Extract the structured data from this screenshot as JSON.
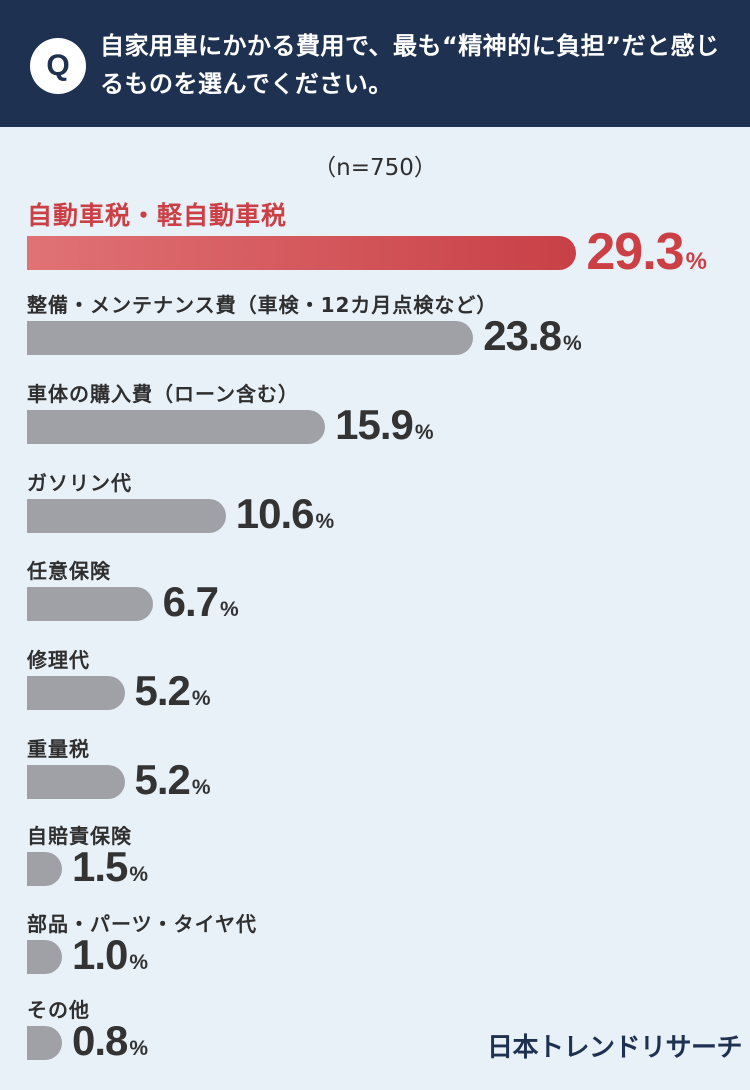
{
  "header": {
    "badge": "Q",
    "question": "自家用車にかかる費用で、最も“精神的に負担”だと感じるものを選んでください。"
  },
  "chart_data": {
    "type": "bar",
    "orientation": "horizontal",
    "sample_note": "（n=750）",
    "unit": "%",
    "highlight_color": "#cc3f45",
    "bar_color": "#a0a1a6",
    "categories": [
      "自動車税・軽自動車税",
      "整備・メンテナンス費（車検・12カ月点検など）",
      "車体の購入費（ローン含む）",
      "ガソリン代",
      "任意保険",
      "修理代",
      "重量税",
      "自賠責保険",
      "部品・パーツ・タイヤ代",
      "その他"
    ],
    "values": [
      29.3,
      23.8,
      15.9,
      10.6,
      6.7,
      5.2,
      5.2,
      1.5,
      1.0,
      0.8
    ],
    "value_labels": [
      "29.3",
      "23.8",
      "15.9",
      "10.6",
      "6.7",
      "5.2",
      "5.2",
      "1.5",
      "1.0",
      "0.8"
    ],
    "highlight_index": 0
  },
  "footer": {
    "logo": "日本トレンドリサーチ"
  }
}
